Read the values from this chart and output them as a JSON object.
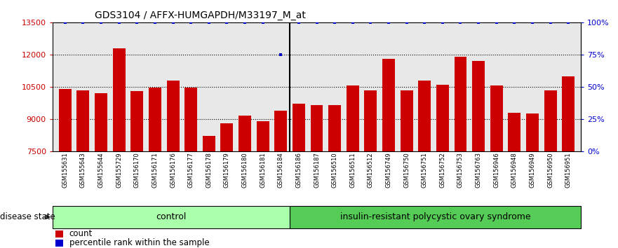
{
  "title": "GDS3104 / AFFX-HUMGAPDH/M33197_M_at",
  "samples": [
    "GSM155631",
    "GSM155643",
    "GSM155644",
    "GSM155729",
    "GSM156170",
    "GSM156171",
    "GSM156176",
    "GSM156177",
    "GSM156178",
    "GSM156179",
    "GSM156180",
    "GSM156181",
    "GSM156184",
    "GSM156186",
    "GSM156187",
    "GSM156510",
    "GSM156511",
    "GSM156512",
    "GSM156749",
    "GSM156750",
    "GSM156751",
    "GSM156752",
    "GSM156753",
    "GSM156763",
    "GSM156946",
    "GSM156948",
    "GSM156949",
    "GSM156950",
    "GSM156951"
  ],
  "counts": [
    10400,
    10350,
    10200,
    12300,
    10300,
    10450,
    10800,
    10450,
    8200,
    8800,
    9150,
    8900,
    9400,
    9700,
    9650,
    9650,
    10550,
    10350,
    11800,
    10350,
    10800,
    10600,
    11900,
    11700,
    10550,
    9300,
    9250,
    10350,
    11000
  ],
  "percentile_ranks": [
    100,
    100,
    100,
    100,
    100,
    100,
    100,
    100,
    100,
    100,
    100,
    100,
    75,
    100,
    100,
    100,
    100,
    100,
    100,
    100,
    100,
    100,
    100,
    100,
    100,
    100,
    100,
    100,
    100
  ],
  "n_control": 13,
  "n_disease": 16,
  "control_label": "control",
  "disease_label": "insulin-resistant polycystic ovary syndrome",
  "disease_state_label": "disease state",
  "bar_color": "#cc0000",
  "dot_color": "#0000cc",
  "ymin": 7500,
  "ymax": 13500,
  "yticks": [
    7500,
    9000,
    10500,
    12000,
    13500
  ],
  "right_yticks": [
    0,
    25,
    50,
    75,
    100
  ],
  "right_ylabels": [
    "0%",
    "25%",
    "50%",
    "75%",
    "100%"
  ],
  "plot_bg": "#e8e8e8",
  "control_bg": "#aaffaa",
  "disease_bg": "#55cc55",
  "legend_count_label": "count",
  "legend_pct_label": "percentile rank within the sample",
  "title_fontsize": 10,
  "bar_width": 0.7
}
